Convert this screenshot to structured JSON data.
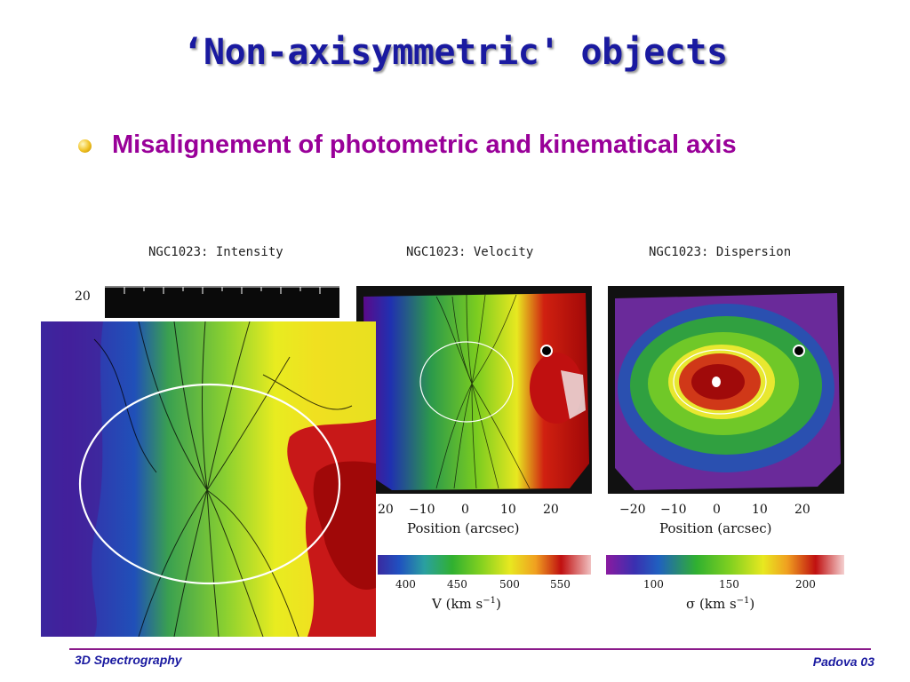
{
  "slide": {
    "title": "‘Non-axisymmetric' objects",
    "bullet": "Misalignement of photometric and kinematical axis",
    "footer_left": "3D Spectrography",
    "footer_right": "Padova 03"
  },
  "panels": {
    "intensity": {
      "title": "NGC1023: Intensity",
      "y_tick": "20"
    },
    "velocity": {
      "title": "NGC1023: Velocity",
      "x_ticks": [
        "20",
        "−10",
        "0",
        "10",
        "20"
      ],
      "x_label": "Position (arcsec)",
      "colorbar_ticks": [
        "400",
        "450",
        "500",
        "550"
      ],
      "colorbar_label": "V (km s",
      "colorbar_label_exp": "−1",
      "colorbar_label_end": ")"
    },
    "dispersion": {
      "title": "NGC1023: Dispersion",
      "x_ticks": [
        "−20",
        "−10",
        "0",
        "10",
        "20"
      ],
      "x_label": "Position (arcsec)",
      "colorbar_ticks": [
        "100",
        "150",
        "200"
      ],
      "colorbar_label": "σ (km s",
      "colorbar_label_exp": "−1",
      "colorbar_label_end": ")"
    }
  },
  "colors": {
    "title": "#1a1aa0",
    "bullet_text": "#990099",
    "footer_line": "#8a1a8a"
  }
}
